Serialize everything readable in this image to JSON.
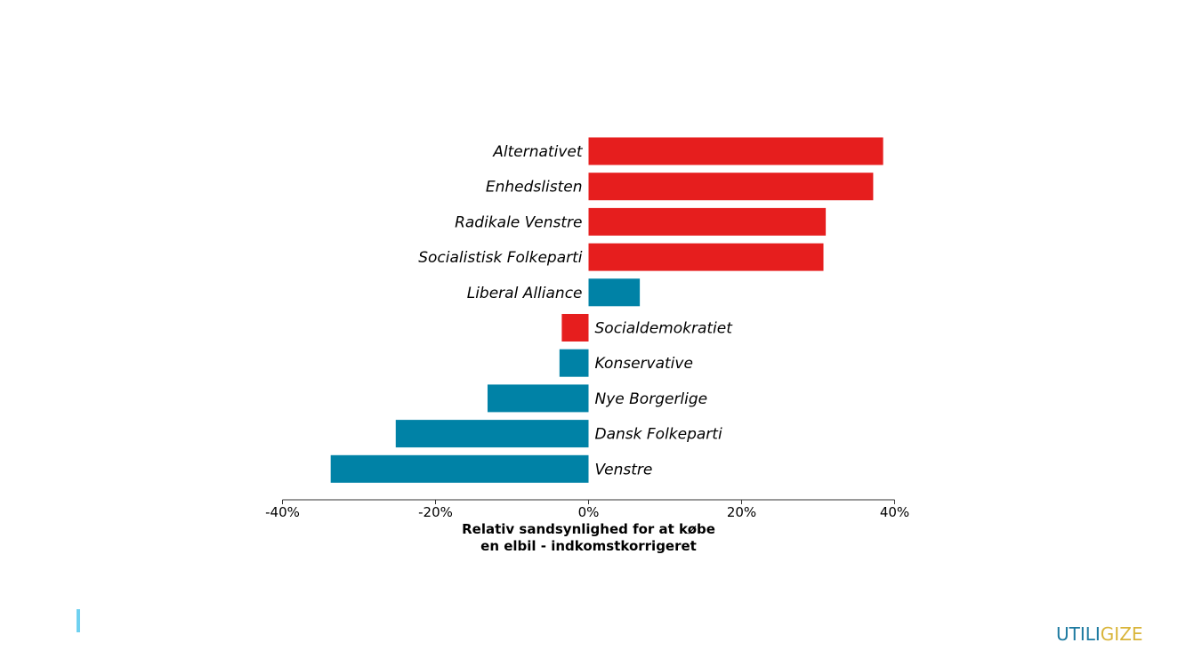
{
  "chart_data": {
    "type": "bar",
    "orientation": "horizontal",
    "categories": [
      "Alternativet",
      "Enhedslisten",
      "Radikale Venstre",
      "Socialistisk Folkeparti",
      "Liberal Alliance",
      "Socialdemokratiet",
      "Konservative",
      "Nye Borgerlige",
      "Dansk Folkeparti",
      "Venstre"
    ],
    "values": [
      38.5,
      37.2,
      31.0,
      30.7,
      6.7,
      -3.5,
      -3.8,
      -13.2,
      -25.2,
      -33.7
    ],
    "bar_colors": [
      "#e61e1e",
      "#e61e1e",
      "#e61e1e",
      "#e61e1e",
      "#0082a6",
      "#e61e1e",
      "#0082a6",
      "#0082a6",
      "#0082a6",
      "#0082a6"
    ],
    "xlim": [
      -40,
      40
    ],
    "xticks": [
      -40,
      -20,
      0,
      20,
      40
    ],
    "xtick_labels": [
      "-40%",
      "-20%",
      "0%",
      "20%",
      "40%"
    ],
    "xlabel_lines": [
      "Relativ sandsynlighed for at købe",
      "en elbil - indkomstkorrigeret"
    ],
    "title": "",
    "grid": false
  },
  "logo": {
    "part1": "UTILI",
    "part2": "GIZE",
    "color1": "#1d7aa0",
    "color2": "#d9b53a"
  }
}
